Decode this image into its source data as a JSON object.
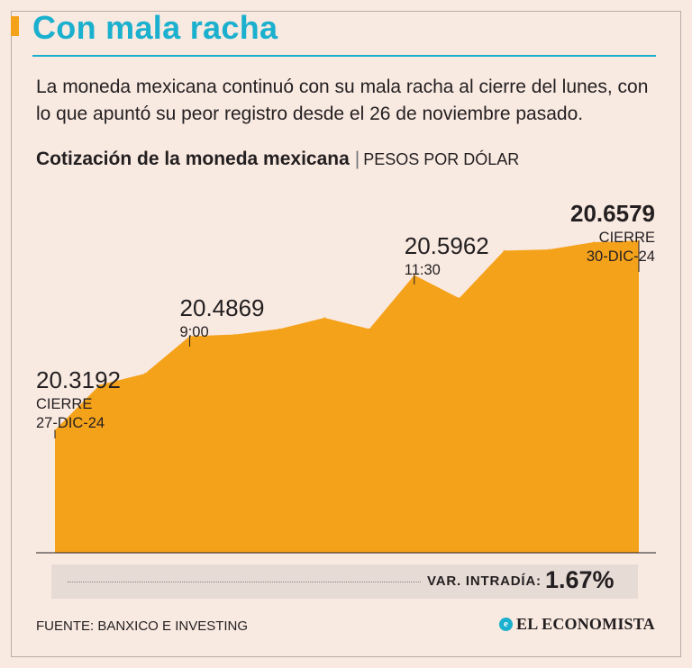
{
  "header": {
    "title": "Con mala racha",
    "subtitle": "La moneda mexicana continuó con su mala racha al cierre del lunes, con lo que apuntó su peor registro desde el 26 de noviembre pasado."
  },
  "colors": {
    "accent": "#1ab0ce",
    "area": "#f5a21b",
    "background": "#f8e9e1"
  },
  "chart_data": {
    "type": "area",
    "title": "Cotización de la moneda mexicana",
    "unit": "PESOS POR DÓLAR",
    "xlabel": "",
    "ylabel": "",
    "ylim": [
      20.1,
      20.75
    ],
    "values": [
      20.3192,
      20.4,
      20.42,
      20.4869,
      20.49,
      20.5,
      20.52,
      20.5,
      20.5962,
      20.555,
      20.64,
      20.642,
      20.655,
      20.6579
    ],
    "annotations": [
      {
        "index": 0,
        "value": "20.3192",
        "line1": "CIERRE",
        "line2": "27-DIC-24",
        "bold": false
      },
      {
        "index": 3,
        "value": "20.4869",
        "line1": "9:00",
        "line2": "",
        "bold": false
      },
      {
        "index": 8,
        "value": "20.5962",
        "line1": "11:30",
        "line2": "",
        "bold": false
      },
      {
        "index": 13,
        "value": "20.6579",
        "line1": "CIERRE",
        "line2": "30-DIC-24",
        "bold": true
      }
    ]
  },
  "summary": {
    "var_label": "VAR. INTRADÍA:",
    "var_value": "1.67%"
  },
  "footer": {
    "source": "FUENTE: BANXICO E INVESTING",
    "brand": "EL ECONOMISTA",
    "brand_icon": "e"
  }
}
